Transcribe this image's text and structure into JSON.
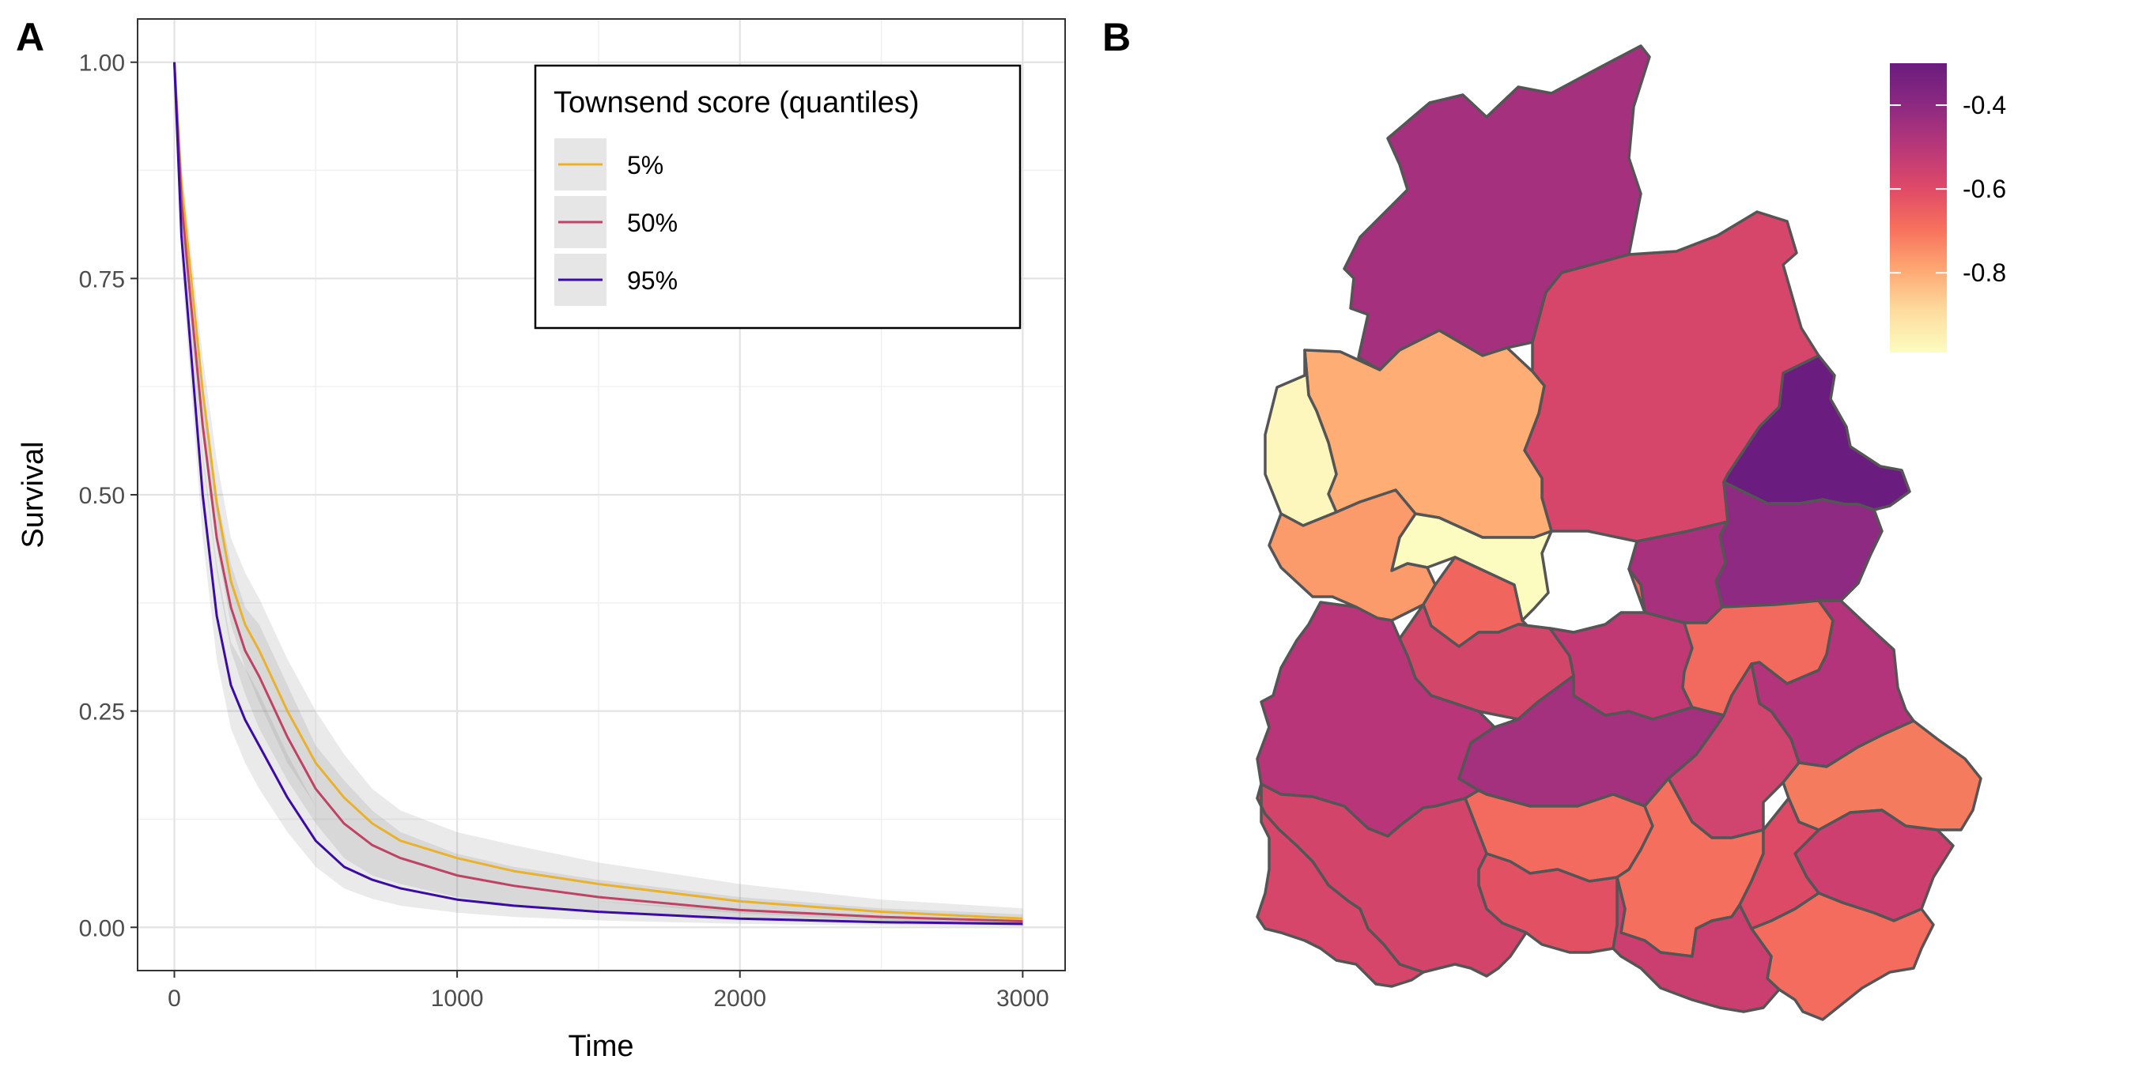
{
  "panels": {
    "a_label": "A",
    "b_label": "B"
  },
  "chart_data": [
    {
      "type": "line",
      "xlabel": "Time",
      "ylabel": "Survival",
      "xlim": [
        -130,
        3150
      ],
      "ylim": [
        -0.05,
        1.05
      ],
      "x_ticks": [
        0,
        1000,
        2000,
        3000
      ],
      "x_tick_labels": [
        "0",
        "1000",
        "2000",
        "3000"
      ],
      "y_ticks": [
        0,
        0.25,
        0.5,
        0.75,
        1
      ],
      "y_tick_labels": [
        "0.00",
        "0.25",
        "0.50",
        "0.75",
        "1.00"
      ],
      "grid": true,
      "legend": {
        "title": "Townsend score (quantiles)",
        "placement": "top-right"
      },
      "x": [
        0,
        25,
        50,
        100,
        150,
        200,
        250,
        300,
        400,
        500,
        600,
        700,
        800,
        1000,
        1200,
        1500,
        2000,
        2500,
        3000
      ],
      "series": [
        {
          "name": "5%",
          "color": "#E8B22E",
          "values": [
            1.0,
            0.86,
            0.78,
            0.62,
            0.49,
            0.4,
            0.35,
            0.32,
            0.25,
            0.19,
            0.15,
            0.12,
            0.1,
            0.08,
            0.065,
            0.05,
            0.03,
            0.018,
            0.01
          ],
          "ci_lower": [
            1.0,
            0.84,
            0.75,
            0.58,
            0.44,
            0.35,
            0.3,
            0.26,
            0.19,
            0.14,
            0.1,
            0.08,
            0.065,
            0.05,
            0.04,
            0.03,
            0.016,
            0.008,
            0.003
          ],
          "ci_upper": [
            1.0,
            0.88,
            0.81,
            0.66,
            0.54,
            0.45,
            0.41,
            0.38,
            0.31,
            0.25,
            0.2,
            0.16,
            0.135,
            0.11,
            0.095,
            0.075,
            0.05,
            0.032,
            0.022
          ]
        },
        {
          "name": "50%",
          "color": "#BE4466",
          "values": [
            1.0,
            0.84,
            0.75,
            0.58,
            0.45,
            0.37,
            0.32,
            0.29,
            0.22,
            0.16,
            0.12,
            0.095,
            0.08,
            0.06,
            0.048,
            0.035,
            0.02,
            0.012,
            0.007
          ],
          "ci_lower": [
            1.0,
            0.82,
            0.72,
            0.54,
            0.41,
            0.32,
            0.27,
            0.23,
            0.17,
            0.12,
            0.08,
            0.06,
            0.05,
            0.035,
            0.025,
            0.017,
            0.008,
            0.004,
            0.002
          ],
          "ci_upper": [
            1.0,
            0.86,
            0.78,
            0.62,
            0.5,
            0.42,
            0.37,
            0.35,
            0.28,
            0.21,
            0.17,
            0.135,
            0.11,
            0.085,
            0.07,
            0.055,
            0.035,
            0.022,
            0.015
          ]
        },
        {
          "name": "95%",
          "color": "#3A0CA3",
          "values": [
            1.0,
            0.8,
            0.7,
            0.5,
            0.36,
            0.28,
            0.24,
            0.21,
            0.15,
            0.1,
            0.07,
            0.055,
            0.045,
            0.032,
            0.025,
            0.018,
            0.01,
            0.006,
            0.004
          ],
          "ci_lower": [
            1.0,
            0.77,
            0.66,
            0.45,
            0.31,
            0.23,
            0.19,
            0.16,
            0.11,
            0.07,
            0.045,
            0.033,
            0.025,
            0.017,
            0.012,
            0.008,
            0.004,
            0.002,
            0.001
          ],
          "ci_upper": [
            1.0,
            0.83,
            0.74,
            0.55,
            0.42,
            0.33,
            0.3,
            0.27,
            0.2,
            0.14,
            0.1,
            0.08,
            0.065,
            0.05,
            0.04,
            0.03,
            0.02,
            0.013,
            0.009
          ]
        }
      ]
    },
    {
      "type": "heatmap",
      "colorbar": {
        "domain": [
          -0.99,
          -0.3
        ],
        "ticks": [
          -0.4,
          -0.6,
          -0.8
        ],
        "tick_labels": [
          "-0.4",
          "-0.6",
          "-0.8"
        ],
        "colors": [
          "#FCFDBF",
          "#FDDC9E",
          "#FEA873",
          "#F7705C",
          "#DE4968",
          "#B73779",
          "#8C2981",
          "#6A1C7F"
        ]
      },
      "regions": [
        {
          "value": -0.38,
          "color": "#A5317E"
        },
        {
          "value": -0.5,
          "color": "#D6456A"
        },
        {
          "value": -0.3,
          "color": "#6A1C7F"
        },
        {
          "value": -0.82,
          "color": "#FEAE75"
        },
        {
          "value": -0.99,
          "color": "#FCFBC0"
        },
        {
          "value": -0.95,
          "color": "#FDF7BD"
        },
        {
          "value": -0.75,
          "color": "#FB9A6A"
        },
        {
          "value": -0.33,
          "color": "#8E2A81"
        },
        {
          "value": -0.38,
          "color": "#A8317E"
        },
        {
          "value": -0.62,
          "color": "#F0665E"
        },
        {
          "value": -0.52,
          "color": "#D24669"
        },
        {
          "value": -0.45,
          "color": "#C03874"
        },
        {
          "value": -0.43,
          "color": "#B9357A"
        },
        {
          "value": -0.62,
          "color": "#F2695D"
        },
        {
          "value": -0.4,
          "color": "#B3347B"
        },
        {
          "value": -0.38,
          "color": "#A3317E"
        },
        {
          "value": -0.5,
          "color": "#D04470"
        },
        {
          "value": -0.68,
          "color": "#F57B5E"
        },
        {
          "value": -0.48,
          "color": "#CC3F6F"
        },
        {
          "value": -0.62,
          "color": "#F26B5E"
        },
        {
          "value": -0.64,
          "color": "#F46F5D"
        },
        {
          "value": -0.54,
          "color": "#DD4A66"
        },
        {
          "value": -0.63,
          "color": "#F36C5D"
        },
        {
          "value": -0.47,
          "color": "#CA3E70"
        },
        {
          "value": -0.56,
          "color": "#E25064"
        },
        {
          "value": -0.5,
          "color": "#D3446B"
        },
        {
          "value": -0.5,
          "color": "#D5466A"
        }
      ]
    }
  ]
}
